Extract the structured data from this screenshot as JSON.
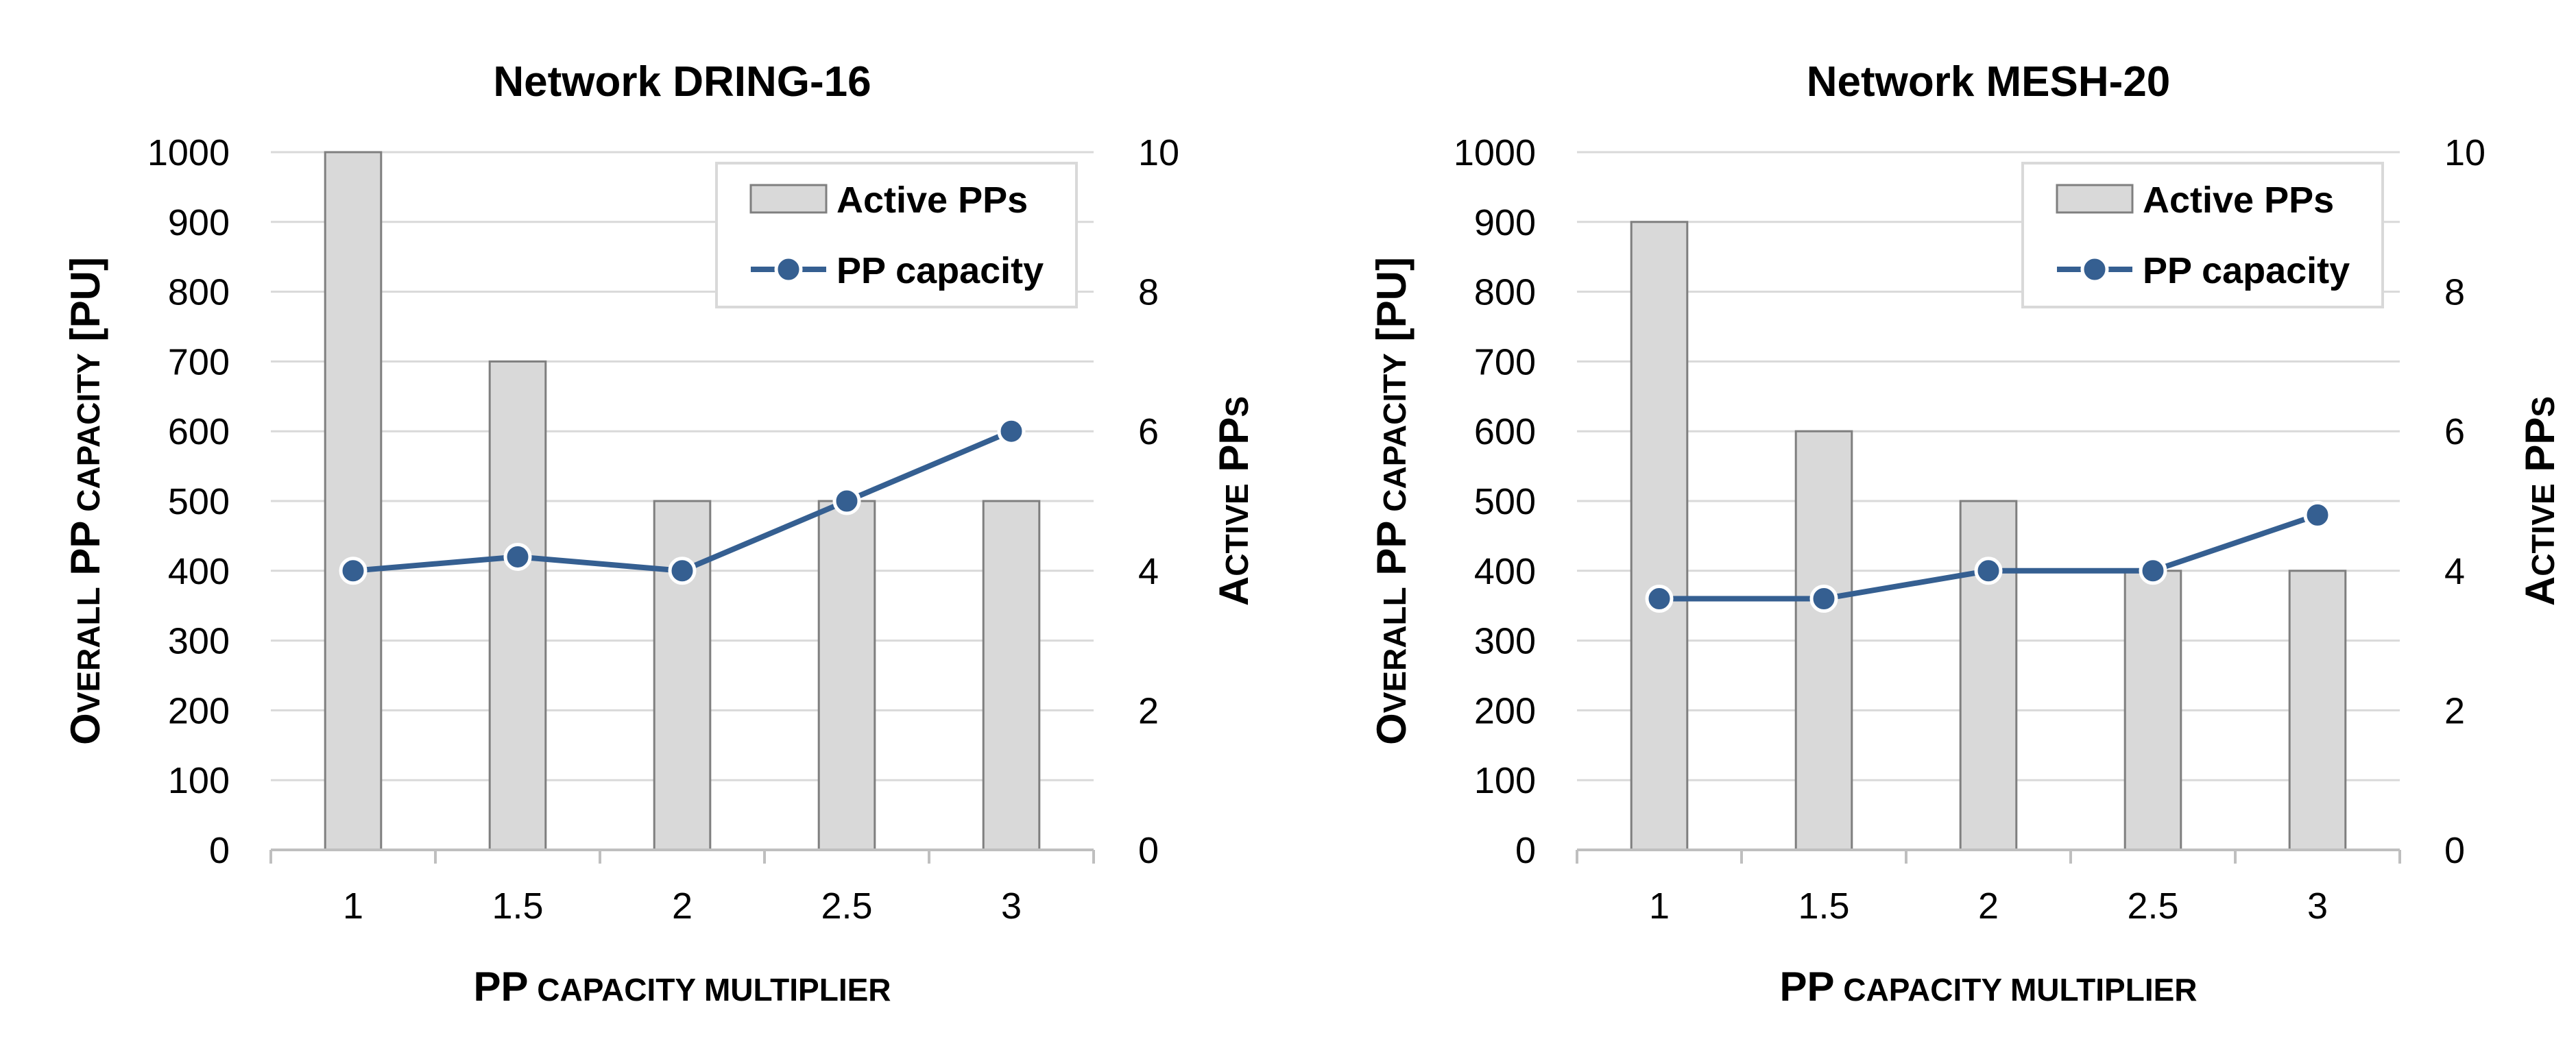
{
  "colors": {
    "bar_fill": "#d9d9d9",
    "bar_stroke": "#7f7f7f",
    "line": "#355f91",
    "marker": "#355f91",
    "grid": "#d9d9d9",
    "axis": "#bfbfbf"
  },
  "chart_data": [
    {
      "type": "bar",
      "title": "Network DRING-16",
      "xlabel": "PP capacity multiplier",
      "ylabel_left": "Overall PP capacity [PU]",
      "ylabel_right": "Active PPs",
      "categories": [
        "1",
        "1.5",
        "2",
        "2.5",
        "3"
      ],
      "ylim_left": [
        0,
        1000
      ],
      "ylim_right": [
        0,
        10
      ],
      "yticks_left": [
        "0",
        "100",
        "200",
        "300",
        "400",
        "500",
        "600",
        "700",
        "800",
        "900",
        "1000"
      ],
      "yticks_right": [
        "0",
        "2",
        "4",
        "6",
        "8",
        "10"
      ],
      "grid": true,
      "legend_position": "top-right",
      "series": [
        {
          "name": "Active PPs",
          "kind": "bar",
          "axis": "right",
          "values": [
            10,
            7,
            5,
            5,
            5
          ]
        },
        {
          "name": "PP capacity",
          "kind": "line",
          "axis": "left",
          "values": [
            400,
            420,
            400,
            500,
            600
          ]
        }
      ]
    },
    {
      "type": "bar",
      "title": "Network MESH-20",
      "xlabel": "PP capacity multiplier",
      "ylabel_left": "Overall PP capacity [PU]",
      "ylabel_right": "Active PPs",
      "categories": [
        "1",
        "1.5",
        "2",
        "2.5",
        "3"
      ],
      "ylim_left": [
        0,
        1000
      ],
      "ylim_right": [
        0,
        10
      ],
      "yticks_left": [
        "0",
        "100",
        "200",
        "300",
        "400",
        "500",
        "600",
        "700",
        "800",
        "900",
        "1000"
      ],
      "yticks_right": [
        "0",
        "2",
        "4",
        "6",
        "8",
        "10"
      ],
      "grid": true,
      "legend_position": "top-right",
      "series": [
        {
          "name": "Active PPs",
          "kind": "bar",
          "axis": "right",
          "values": [
            9,
            6,
            5,
            4,
            4
          ]
        },
        {
          "name": "PP capacity",
          "kind": "line",
          "axis": "left",
          "values": [
            360,
            360,
            400,
            400,
            480
          ]
        }
      ]
    }
  ]
}
